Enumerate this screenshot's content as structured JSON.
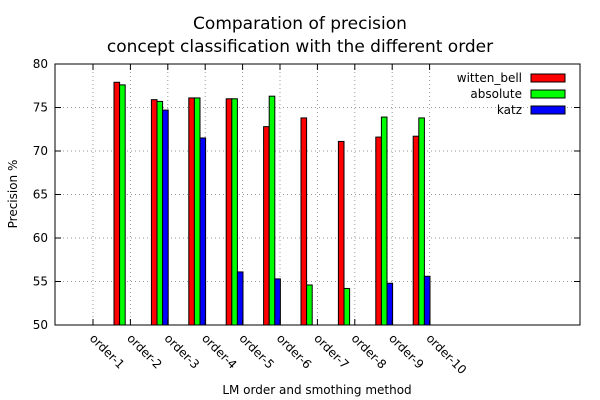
{
  "chart_data": {
    "type": "bar",
    "title_line1": "Comparation of precision",
    "title_line2": "concept classification with the different order",
    "xlabel": "LM order and smothing method",
    "ylabel": "Precision %",
    "ylim": [
      50,
      80
    ],
    "yticks": [
      50,
      55,
      60,
      65,
      70,
      75,
      80
    ],
    "grid": true,
    "legend_position": "top-right",
    "categories": [
      "order-1",
      "order-2",
      "order-3",
      "order-4",
      "order-5",
      "order-6",
      "order-7",
      "order-8",
      "order-9",
      "order-10"
    ],
    "series": [
      {
        "name": "witten_bell",
        "color": "#ff0000",
        "values": [
          50,
          77.9,
          75.9,
          76.1,
          76.0,
          72.8,
          73.8,
          71.1,
          71.6,
          71.7
        ]
      },
      {
        "name": "absolute",
        "color": "#00ff00",
        "values": [
          50,
          77.6,
          75.7,
          76.1,
          76.0,
          76.3,
          54.6,
          54.2,
          73.9,
          73.8
        ]
      },
      {
        "name": "katz",
        "color": "#0000ff",
        "values": [
          50,
          50,
          74.7,
          71.5,
          56.1,
          55.3,
          50,
          50,
          54.8,
          55.6
        ]
      }
    ]
  }
}
